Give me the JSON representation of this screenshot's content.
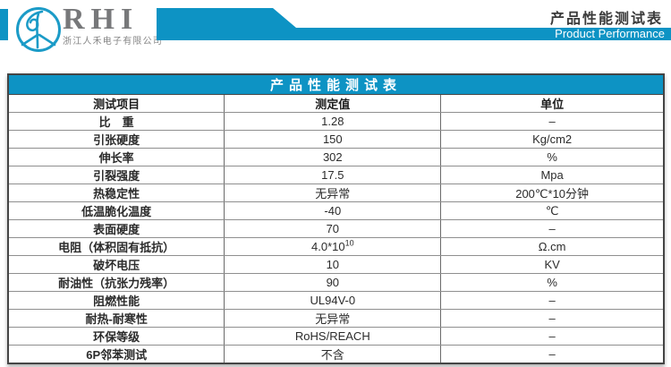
{
  "header": {
    "logo": "rhi-circle-monogram",
    "brand": "RHI",
    "company_name": "浙江人禾电子有限公司",
    "page_title_cn": "产品性能测试表",
    "page_title_en": "Product Performance"
  },
  "table": {
    "title": "产品性能测试表",
    "columns": [
      "测试项目",
      "测定值",
      "单位"
    ],
    "rows": [
      {
        "item": "比　重",
        "value": "1.28",
        "unit": "–"
      },
      {
        "item": "引张硬度",
        "value": "150",
        "unit": "Kg/cm2"
      },
      {
        "item": "伸长率",
        "value": "302",
        "unit": "%"
      },
      {
        "item": "引裂强度",
        "value": "17.5",
        "unit": "Mpa"
      },
      {
        "item": "热稳定性",
        "value": "无异常",
        "unit": "200℃*10分钟"
      },
      {
        "item": "低温脆化温度",
        "value": "-40",
        "unit": "℃"
      },
      {
        "item": "表面硬度",
        "value": "70",
        "unit": "–"
      },
      {
        "item": "电阻（体积固有抵抗）",
        "value": "4.0*10",
        "value_sup": "10",
        "unit": "Ω.cm"
      },
      {
        "item": "破坏电压",
        "value": "10",
        "unit": "KV"
      },
      {
        "item": "耐油性（抗张力残率）",
        "value": "90",
        "unit": "%"
      },
      {
        "item": "阻燃性能",
        "value": "UL94V-0",
        "unit": "–"
      },
      {
        "item": "耐热-耐寒性",
        "value": "无异常",
        "unit": "–"
      },
      {
        "item": "环保等级",
        "value": "RoHS/REACH",
        "unit": "–"
      },
      {
        "item": "6P邻苯测试",
        "value": "不含",
        "unit": "–"
      }
    ]
  },
  "colors": {
    "accent_teal": "#0d93c4",
    "logo_teal": "#1b9bc7",
    "brand_gray": "#77787a",
    "title_text": "#3a3a3a",
    "cell_text": "#2b2b2b"
  }
}
